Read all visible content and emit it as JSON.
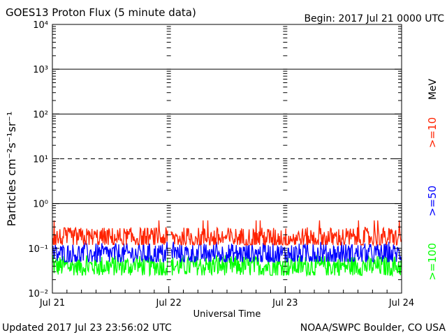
{
  "chart_data": {
    "type": "line",
    "title": "GOES13 Proton Flux (5 minute data)",
    "begin_label": "Begin: 2017 Jul 21 0000 UTC",
    "ylabel": "Particles cm⁻²s⁻¹sr⁻¹",
    "xlabel": "Universal Time",
    "y_scale": "log",
    "ylim": [
      0.01,
      10000
    ],
    "y_ticks": [
      {
        "value": 0.01,
        "label": "10⁻²"
      },
      {
        "value": 0.1,
        "label": "10⁻¹"
      },
      {
        "value": 1,
        "label": "10⁰"
      },
      {
        "value": 10,
        "label": "10¹"
      },
      {
        "value": 100,
        "label": "10²"
      },
      {
        "value": 1000,
        "label": "10³"
      },
      {
        "value": 10000,
        "label": "10⁴"
      }
    ],
    "x_range": [
      "2017-07-21 00:00",
      "2017-07-24 00:00"
    ],
    "x_ticks": [
      "Jul 21",
      "Jul 22",
      "Jul 23",
      "Jul 24"
    ],
    "threshold_lines": [
      {
        "value": 1,
        "style": "solid"
      },
      {
        "value": 10,
        "style": "dashed"
      },
      {
        "value": 100,
        "style": "solid"
      },
      {
        "value": 1000,
        "style": "solid"
      }
    ],
    "series": [
      {
        "name": ">=10",
        "color": "#ff2200",
        "typical": 0.17,
        "min": 0.12,
        "max": 0.42
      },
      {
        "name": ">=50",
        "color": "#0000ff",
        "typical": 0.075,
        "min": 0.05,
        "max": 0.14
      },
      {
        "name": ">=100",
        "color": "#00ff00",
        "typical": 0.04,
        "min": 0.025,
        "max": 0.07
      }
    ],
    "unit_label": "MeV",
    "grid": false,
    "legend_position": "right"
  },
  "footer": {
    "updated": "Updated 2017 Jul 23 23:56:02 UTC",
    "source": "NOAA/SWPC Boulder, CO USA"
  }
}
